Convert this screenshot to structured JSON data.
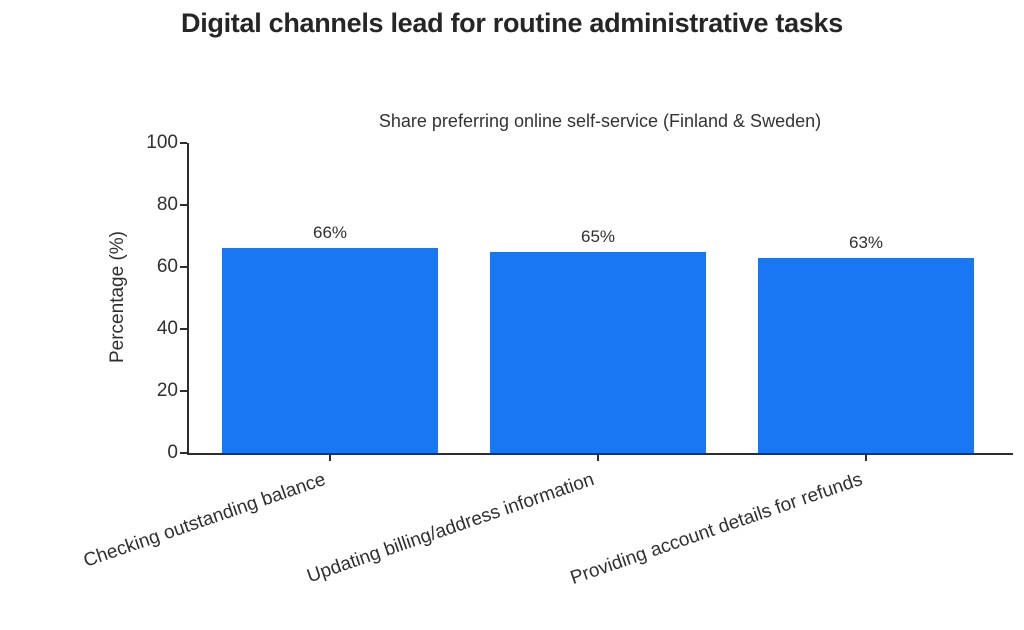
{
  "chart_data": {
    "type": "bar",
    "title": "Digital channels lead for routine administrative tasks",
    "subtitle": "Share preferring online self-service (Finland & Sweden)",
    "categories": [
      "Checking outstanding balance",
      "Updating billing/address information",
      "Providing account details for refunds"
    ],
    "values": [
      66,
      65,
      63
    ],
    "value_labels": [
      "66%",
      "65%",
      "63%"
    ],
    "xlabel": "",
    "ylabel": "Percentage (%)",
    "ylim": [
      0,
      100
    ],
    "yticks": [
      0,
      20,
      40,
      60,
      80,
      100
    ],
    "grid": false,
    "legend": "none",
    "bar_color": "#1877F2",
    "axis_color": "#2e2e2e",
    "title_color": "#262626",
    "text_color": "#303030"
  }
}
